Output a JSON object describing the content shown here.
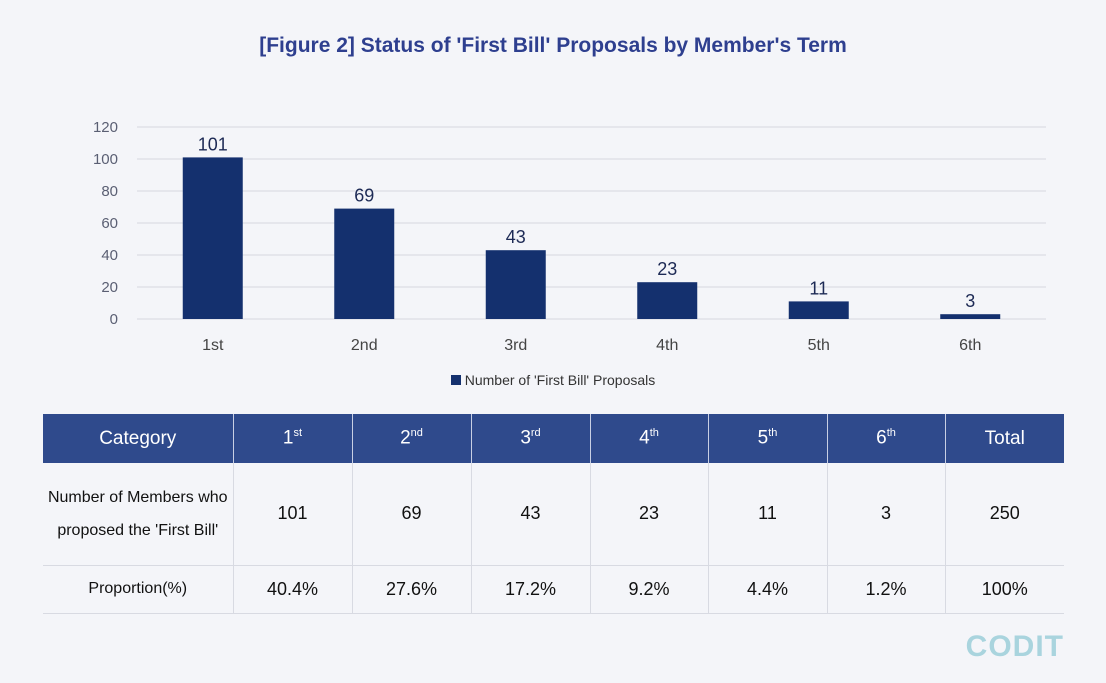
{
  "title": "[Figure 2] Status of 'First Bill' Proposals by Member's Term",
  "chart_data": {
    "type": "bar",
    "categories": [
      "1st",
      "2nd",
      "3rd",
      "4th",
      "5th",
      "6th"
    ],
    "series": [
      {
        "name": "Number of 'First Bill' Proposals",
        "values": [
          101,
          69,
          43,
          23,
          11,
          3
        ]
      }
    ],
    "ylim": [
      0,
      120
    ],
    "yticks": [
      0,
      20,
      40,
      60,
      80,
      100,
      120
    ],
    "grid": true,
    "legend_position": "bottom",
    "bar_color": "#14306e"
  },
  "table": {
    "header": {
      "category": "Category",
      "terms": [
        {
          "num": "1",
          "suffix": "st"
        },
        {
          "num": "2",
          "suffix": "nd"
        },
        {
          "num": "3",
          "suffix": "rd"
        },
        {
          "num": "4",
          "suffix": "th"
        },
        {
          "num": "5",
          "suffix": "th"
        },
        {
          "num": "6",
          "suffix": "th"
        }
      ],
      "total": "Total"
    },
    "rows": [
      {
        "label": "Number of Members who proposed the 'First Bill'",
        "values": [
          "101",
          "69",
          "43",
          "23",
          "11",
          "3",
          "250"
        ]
      },
      {
        "label": "Proportion(%)",
        "values": [
          "40.4%",
          "27.6%",
          "17.2%",
          "9.2%",
          "4.4%",
          "1.2%",
          "100%"
        ]
      }
    ]
  },
  "logo_text": "CODIT",
  "colors": {
    "title": "#2e3f8f",
    "header_bg": "#2f4a8c",
    "bar": "#14306e",
    "logo": "#a9d4de"
  }
}
